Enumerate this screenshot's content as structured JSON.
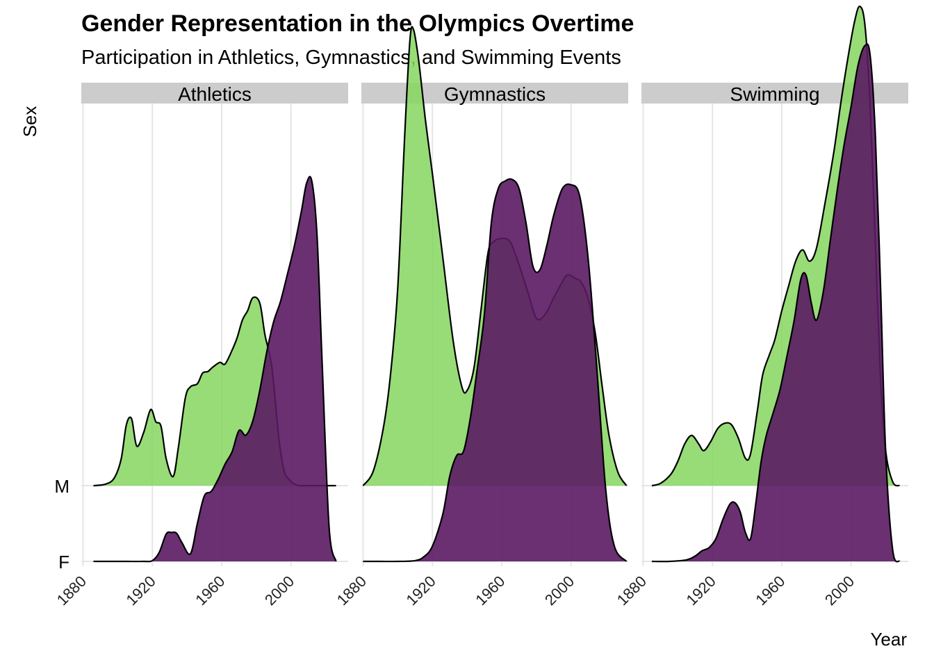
{
  "title": "Gender Representation in the Olympics Overtime",
  "subtitle": "Participation in Athletics, Gymnastics, and Swimming Events",
  "colors": {
    "female": "#5a1a63",
    "male": "#85d65f",
    "strip": "#cccccc",
    "grid": "#e5e5e5"
  },
  "chart_data": {
    "type": "area",
    "subtype": "ridgeline density",
    "xlabel": "Year",
    "ylabel": "Sex",
    "x_ticks": [
      1880,
      1920,
      1960,
      2000
    ],
    "xlim": [
      1879,
      2033
    ],
    "y_categories": [
      "F",
      "M"
    ],
    "facets": [
      {
        "name": "Athletics",
        "series": [
          {
            "name": "M",
            "x": [
              1886,
              1893,
              1898,
              1902,
              1905,
              1908,
              1911,
              1915,
              1919,
              1922,
              1925,
              1928,
              1932,
              1935,
              1939,
              1942,
              1946,
              1949,
              1952,
              1955,
              1959,
              1962,
              1966,
              1969,
              1972,
              1975,
              1978,
              1982,
              1985,
              1989,
              1993,
              1996,
              1999,
              2002,
              2005,
              2008,
              2012,
              2015,
              2019,
              2022,
              2026
            ],
            "density": [
              0.0,
              0.02,
              0.1,
              0.35,
              0.8,
              0.88,
              0.52,
              0.7,
              1.0,
              0.84,
              0.78,
              0.35,
              0.12,
              0.5,
              1.15,
              1.3,
              1.34,
              1.48,
              1.5,
              1.56,
              1.62,
              1.6,
              1.78,
              1.95,
              2.18,
              2.3,
              2.47,
              2.4,
              1.98,
              1.55,
              0.62,
              0.2,
              0.08,
              0.02,
              0.0,
              0.0,
              0.0,
              0.0,
              0.0,
              0.0,
              0.0
            ]
          },
          {
            "name": "F",
            "x": [
              1886,
              1895,
              1905,
              1915,
              1920,
              1924,
              1928,
              1931,
              1934,
              1937,
              1942,
              1946,
              1950,
              1954,
              1958,
              1962,
              1966,
              1970,
              1974,
              1978,
              1982,
              1986,
              1990,
              1994,
              1998,
              2002,
              2006,
              2009,
              2012,
              2015,
              2018,
              2022,
              2026
            ],
            "density": [
              0.0,
              0.0,
              0.0,
              0.0,
              0.01,
              0.12,
              0.36,
              0.38,
              0.37,
              0.25,
              0.1,
              0.5,
              0.86,
              0.92,
              1.08,
              1.28,
              1.44,
              1.72,
              1.66,
              1.85,
              2.25,
              2.75,
              3.15,
              3.42,
              3.78,
              4.15,
              4.6,
              4.97,
              5.0,
              4.3,
              2.6,
              0.45,
              0.0
            ]
          }
        ]
      },
      {
        "name": "Gymnastics",
        "series": [
          {
            "name": "M",
            "x": [
              1880,
              1886,
              1892,
              1896,
              1900,
              1904,
              1907,
              1909,
              1912,
              1916,
              1920,
              1926,
              1932,
              1937,
              1940,
              1944,
              1948,
              1952,
              1955,
              1960,
              1965,
              1970,
              1975,
              1980,
              1985,
              1990,
              1995,
              1998,
              2002,
              2006,
              2010,
              2014,
              2018,
              2022,
              2027,
              2032
            ],
            "density": [
              0.0,
              0.2,
              0.8,
              1.5,
              2.6,
              4.6,
              5.85,
              6.0,
              5.6,
              4.8,
              4.1,
              3.0,
              1.9,
              1.3,
              1.25,
              1.55,
              2.3,
              3.05,
              3.2,
              3.25,
              3.2,
              2.9,
              2.55,
              2.2,
              2.25,
              2.47,
              2.68,
              2.77,
              2.73,
              2.67,
              2.45,
              2.0,
              1.3,
              0.65,
              0.18,
              0.0
            ]
          },
          {
            "name": "F",
            "x": [
              1880,
              1890,
              1900,
              1910,
              1915,
              1920,
              1926,
              1930,
              1934,
              1938,
              1942,
              1946,
              1950,
              1954,
              1958,
              1962,
              1966,
              1970,
              1974,
              1978,
              1982,
              1986,
              1990,
              1995,
              2000,
              2005,
              2010,
              2015,
              2020,
              2025,
              2032
            ],
            "density": [
              0.0,
              0.0,
              0.0,
              0.01,
              0.06,
              0.2,
              0.62,
              1.12,
              1.39,
              1.45,
              1.9,
              2.55,
              3.25,
              4.45,
              4.9,
              5.0,
              5.02,
              4.9,
              4.45,
              3.88,
              3.83,
              4.15,
              4.55,
              4.9,
              4.95,
              4.8,
              3.95,
              2.5,
              0.95,
              0.2,
              0.0
            ]
          }
        ]
      },
      {
        "name": "Swimming",
        "series": [
          {
            "name": "M",
            "x": [
              1885,
              1890,
              1896,
              1900,
              1904,
              1908,
              1912,
              1915,
              1919,
              1923,
              1927,
              1931,
              1935,
              1939,
              1942,
              1946,
              1949,
              1953,
              1956,
              1960,
              1964,
              1968,
              1972,
              1976,
              1980,
              1985,
              1990,
              1994,
              1998,
              2002,
              2005,
              2008,
              2011,
              2014,
              2017,
              2020,
              2024,
              2028
            ],
            "density": [
              0.0,
              0.03,
              0.15,
              0.32,
              0.55,
              0.66,
              0.55,
              0.46,
              0.58,
              0.75,
              0.82,
              0.8,
              0.62,
              0.36,
              0.42,
              1.0,
              1.46,
              1.73,
              1.92,
              2.3,
              2.63,
              2.95,
              3.1,
              2.95,
              3.12,
              3.72,
              4.38,
              5.02,
              5.6,
              6.1,
              6.3,
              6.05,
              5.0,
              3.2,
              1.4,
              0.45,
              0.05,
              0.0
            ]
          },
          {
            "name": "F",
            "x": [
              1885,
              1895,
              1905,
              1910,
              1914,
              1918,
              1922,
              1926,
              1930,
              1933,
              1936,
              1939,
              1942,
              1945,
              1948,
              1951,
              1955,
              1959,
              1963,
              1967,
              1971,
              1974,
              1977,
              1980,
              1984,
              1988,
              1992,
              1996,
              2000,
              2004,
              2008,
              2011,
              2014,
              2017,
              2020,
              2024,
              2028
            ],
            "density": [
              0.0,
              0.0,
              0.02,
              0.07,
              0.14,
              0.18,
              0.3,
              0.55,
              0.75,
              0.77,
              0.65,
              0.38,
              0.3,
              0.76,
              1.3,
              1.65,
              1.95,
              2.26,
              2.7,
              3.15,
              3.71,
              3.76,
              3.4,
              3.17,
              3.55,
              4.22,
              4.88,
              5.48,
              5.98,
              6.52,
              6.78,
              6.65,
              5.6,
              3.6,
              1.4,
              0.15,
              0.0
            ]
          }
        ]
      }
    ]
  }
}
